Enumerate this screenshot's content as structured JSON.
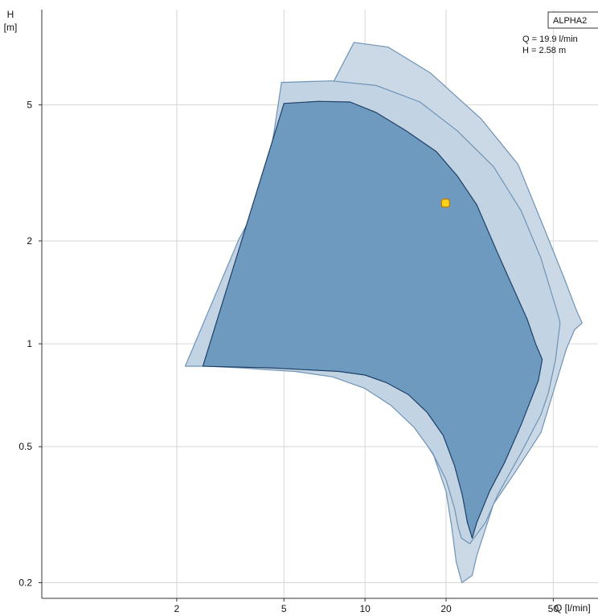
{
  "chart_data": {
    "type": "area",
    "title": "",
    "xlabel": "Q [l/min]",
    "ylabel_top": "H",
    "ylabel_unit": "[m]",
    "xscale": "log",
    "yscale": "log",
    "xlim": [
      1,
      73
    ],
    "ylim": [
      0.18,
      9.5
    ],
    "grid": true,
    "x_ticks": [
      {
        "value": 2,
        "label": "2"
      },
      {
        "value": 5,
        "label": "5"
      },
      {
        "value": 10,
        "label": "10"
      },
      {
        "value": 20,
        "label": "20"
      },
      {
        "value": 50,
        "label": "50"
      }
    ],
    "x_axis_title": "Q [l/min]",
    "y_ticks": [
      {
        "value": 0.2,
        "label": "0.2"
      },
      {
        "value": 0.5,
        "label": "0.5"
      },
      {
        "value": 1,
        "label": "1"
      },
      {
        "value": 2,
        "label": "2"
      },
      {
        "value": 5,
        "label": "5"
      }
    ],
    "series": [
      {
        "label": "ALPHA2",
        "color": "#cbd9e6",
        "edge": "#6e93b6",
        "points": [
          [
            9.1,
            7.62
          ],
          [
            12.2,
            7.38
          ],
          [
            17.5,
            6.2
          ],
          [
            27,
            4.55
          ],
          [
            37,
            3.35
          ],
          [
            46,
            2.2
          ],
          [
            55,
            1.55
          ],
          [
            61,
            1.25
          ],
          [
            64,
            1.15
          ],
          [
            60,
            1.1
          ],
          [
            56,
            0.97
          ],
          [
            45,
            0.55
          ],
          [
            36,
            0.42
          ],
          [
            30,
            0.34
          ],
          [
            26,
            0.24
          ],
          [
            25,
            0.21
          ],
          [
            22.9,
            0.2
          ],
          [
            21.8,
            0.23
          ],
          [
            21,
            0.29
          ],
          [
            20,
            0.37
          ],
          [
            18,
            0.47
          ],
          [
            15.5,
            0.57
          ],
          [
            12.8,
            0.67
          ],
          [
            10,
            0.76
          ],
          [
            7,
            0.82
          ],
          [
            5.5,
            0.84
          ],
          [
            4.2,
            0.85
          ],
          [
            3.5,
            0.85
          ],
          [
            3.5,
            1.1
          ],
          [
            5,
            2.2
          ],
          [
            5.5,
            2.65
          ],
          [
            6.2,
            3.7
          ],
          [
            7.6,
            5.8
          ]
        ]
      },
      {
        "color": "#c2d4e4",
        "edge": "#6e93b6",
        "points": [
          [
            4.9,
            5.82
          ],
          [
            7.5,
            5.88
          ],
          [
            11,
            5.7
          ],
          [
            16,
            5.1
          ],
          [
            22,
            4.2
          ],
          [
            30,
            3.3
          ],
          [
            38,
            2.45
          ],
          [
            45,
            1.78
          ],
          [
            52,
            1.22
          ],
          [
            53,
            1.15
          ],
          [
            51,
            0.9
          ],
          [
            48,
            0.72
          ],
          [
            45,
            0.62
          ],
          [
            38,
            0.48
          ],
          [
            31,
            0.36
          ],
          [
            28,
            0.3
          ],
          [
            24.5,
            0.26
          ],
          [
            22.8,
            0.27
          ],
          [
            22.2,
            0.29
          ],
          [
            21.5,
            0.33
          ],
          [
            20,
            0.4
          ],
          [
            17.8,
            0.48
          ],
          [
            15.2,
            0.57
          ],
          [
            12.5,
            0.66
          ],
          [
            10,
            0.74
          ],
          [
            7.6,
            0.8
          ],
          [
            5.5,
            0.83
          ],
          [
            4.3,
            0.84
          ],
          [
            3.5,
            0.85
          ],
          [
            2.6,
            0.86
          ],
          [
            2.15,
            0.86
          ],
          [
            3.4,
            2.02
          ],
          [
            4.2,
            2.75
          ],
          [
            4.6,
            4.2
          ]
        ]
      },
      {
        "color": "#6f9abf",
        "edge": "#1e3f66",
        "points": [
          [
            5,
            5.05
          ],
          [
            6.7,
            5.12
          ],
          [
            8.8,
            5.1
          ],
          [
            11,
            4.75
          ],
          [
            14.2,
            4.2
          ],
          [
            18.4,
            3.65
          ],
          [
            22,
            3.1
          ],
          [
            26,
            2.55
          ],
          [
            31,
            1.85
          ],
          [
            36,
            1.42
          ],
          [
            40,
            1.18
          ],
          [
            43,
            1.0
          ],
          [
            45.5,
            0.9
          ],
          [
            44,
            0.78
          ],
          [
            38,
            0.58
          ],
          [
            33,
            0.45
          ],
          [
            29,
            0.37
          ],
          [
            26,
            0.3
          ],
          [
            25,
            0.27
          ],
          [
            24,
            0.3
          ],
          [
            23,
            0.36
          ],
          [
            21.5,
            0.44
          ],
          [
            19.5,
            0.54
          ],
          [
            17,
            0.63
          ],
          [
            14.5,
            0.71
          ],
          [
            12,
            0.77
          ],
          [
            10,
            0.81
          ],
          [
            8,
            0.83
          ],
          [
            6,
            0.84
          ],
          [
            4.5,
            0.85
          ],
          [
            2.5,
            0.86
          ]
        ]
      }
    ],
    "operating_point": {
      "q": 19.9,
      "h": 2.58,
      "color": "#ffd21a",
      "edge": "#c07800"
    },
    "annotations": {
      "tag": "ALPHA2",
      "q_line": "Q = 19.9 l/min",
      "h_line": "H = 2.58 m"
    }
  }
}
